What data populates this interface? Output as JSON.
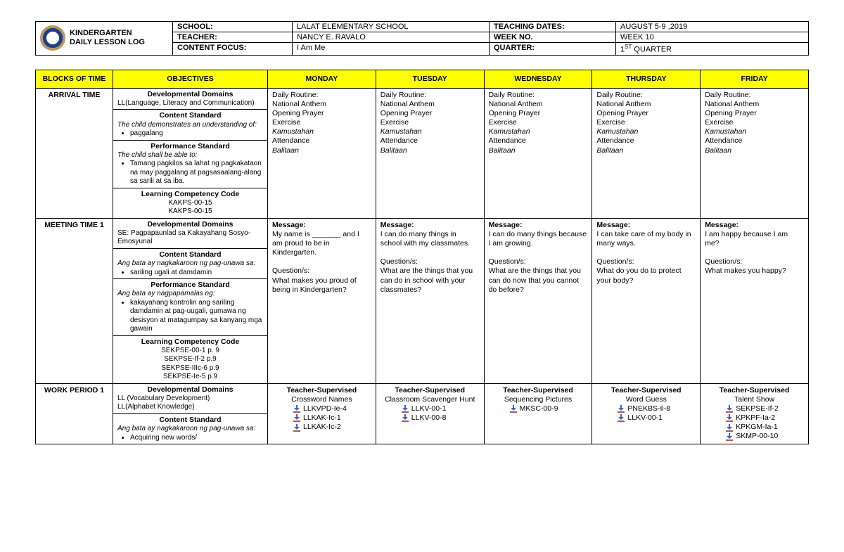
{
  "header": {
    "title_line1": "KINDERGARTEN",
    "title_line2": "DAILY LESSON LOG",
    "labels": {
      "school": "SCHOOL:",
      "teacher": "TEACHER:",
      "content_focus": "CONTENT FOCUS:",
      "teaching_dates": "TEACHING DATES:",
      "week_no": "WEEK NO.",
      "quarter": "QUARTER:"
    },
    "values": {
      "school": "LALAT  ELEMENTARY   SCHOOL",
      "teacher": "NANCY  E.  RAVALO",
      "content_focus": "I Am Me",
      "teaching_dates": "AUGUST  5-9 ,2019",
      "week_no": "WEEK 10",
      "quarter_prefix": "1",
      "quarter_sup": "ST",
      "quarter_suffix": " QUARTER"
    }
  },
  "columns": {
    "blocks": "BLOCKS OF TIME",
    "objectives": "OBJECTIVES",
    "mon": "MONDAY",
    "tue": "TUESDAY",
    "wed": "WEDNESDAY",
    "thu": "THURSDAY",
    "fri": "FRIDAY"
  },
  "arrival": {
    "title": "ARRIVAL TIME",
    "obj": {
      "dd_head": "Developmental Domains",
      "dd_body": "LL(Language, Literacy and Communication)",
      "cs_head": "Content Standard",
      "cs_body": "The child demonstrates an understanding of:",
      "cs_item": "paggalang",
      "ps_head": "Performance Standard",
      "ps_body": "The child shall be able to:",
      "ps_item": "Tamang pagkilos sa lahat ng pagkakataon na may paggalang at pagsasaalang-alang sa sarili at sa iba.",
      "lc_head": "Learning Competency Code",
      "lc1": "KAKPS-00-15",
      "lc2": "KAKPS-00-15"
    },
    "routine_label": "Daily Routine:",
    "routine_lines": [
      "National Anthem",
      "Opening Prayer",
      "Exercise"
    ],
    "routine_italic": [
      "Kamustahan"
    ],
    "routine_lines2": [
      "Attendance"
    ],
    "routine_italic2": [
      "Balitaan"
    ]
  },
  "meeting": {
    "title": "MEETING TIME 1",
    "obj": {
      "dd_head": "Developmental Domains",
      "dd_body": "SE: Pagpapaunlad sa Kakayahang Sosyo-Emosyunal",
      "cs_head": "Content Standard",
      "cs_body": "Ang bata ay nagkakaroon ng pag-unawa sa:",
      "cs_item": "sariling ugali at damdamin",
      "ps_head": "Performance Standard",
      "ps_body": "Ang bata ay nagpapamalas ng:",
      "ps_item": "kakayahang kontrolin ang sariling damdamin at pag-uugali, gumawa ng desisyon at matagumpay sa kanyang mga gawain",
      "lc_head": "Learning Competency Code",
      "lc": [
        "SEKPSE-00-1  p. 9",
        "SEKPSE-If-2   p.9",
        "SEKPSE-IIIc-6  p.9",
        "SEKPSE-Ie-5   p.9"
      ]
    },
    "mon": {
      "msg_label": "Message:",
      "msg": "My name is _______ and I am proud to be in Kindergarten.",
      "q_label": "Question/s:",
      "q": "What makes you proud of being in Kindergarten?"
    },
    "tue": {
      "msg_label": "Message:",
      "msg": "I can do many things in school with my classmates.",
      "q_label": "Question/s:",
      "q": "What are the things that you can do in school with your classmates?"
    },
    "wed": {
      "msg_label": "Message:",
      "msg": "I can do many things because I am growing.",
      "q_label": "Question/s:",
      "q": "What are the things that you can do now that you cannot do before?"
    },
    "thu": {
      "msg_label": "Message:",
      "msg": "I can take care of my body in many ways.",
      "q_label": "Question/s:",
      "q": "What do you do to protect your body?"
    },
    "fri": {
      "msg_label": "Message:",
      "msg": "I am happy because I am me?",
      "q_label": "Question/s:",
      "q": "What makes you happy?"
    }
  },
  "work": {
    "title": "WORK PERIOD 1",
    "obj": {
      "dd_head": "Developmental Domains",
      "dd_body1": "LL (Vocabulary Development)",
      "dd_body2": "LL(Alphabet Knowledge)",
      "cs_head": "Content Standard",
      "cs_body": "Ang bata ay nagkakaroon ng pag-unawa sa:",
      "cs_item": "Acquiring new words/"
    },
    "ts_head": "Teacher-Supervised",
    "mon": {
      "sub": "Crossword Names",
      "codes": [
        "LLKVPD-Ie-4",
        "LLKAK-Ic-1",
        "LLKAK-Ic-2"
      ]
    },
    "tue": {
      "sub": "Classroom Scavenger Hunt",
      "codes": [
        "LLKV-00-1",
        "LLKV-00-8"
      ]
    },
    "wed": {
      "sub": "Sequencing Pictures",
      "codes": [
        "MKSC-00-9"
      ]
    },
    "thu": {
      "sub": "Word Guess",
      "codes": [
        "PNEKBS-Ii-8",
        "LLKV-00-1"
      ]
    },
    "fri": {
      "sub": "Talent Show",
      "codes": [
        "SEKPSE-If-2",
        "KPKPF-Ia-2",
        "KPKGM-Ia-1",
        "SKMP-00-10"
      ]
    }
  }
}
